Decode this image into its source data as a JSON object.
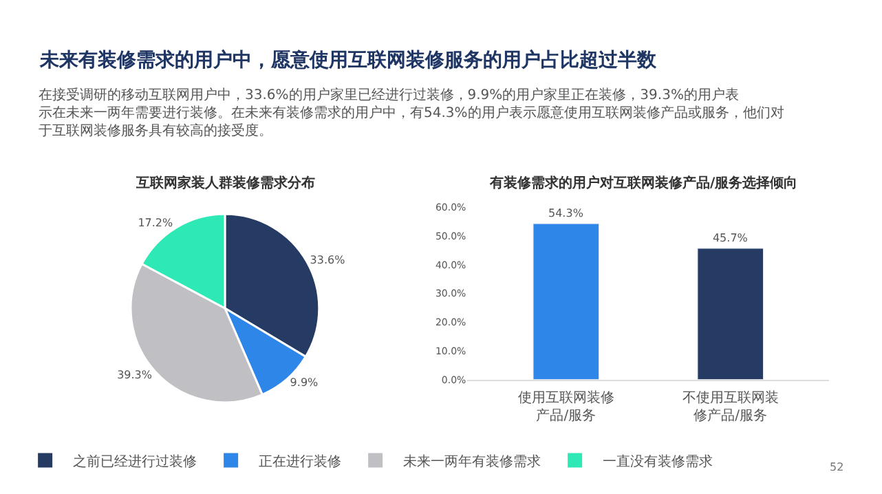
{
  "chart_data": [
    {
      "type": "other",
      "title": "未来有装修需求的用户中，愿意使用互联网装修服务的用户占比超过半数",
      "subtitle": "在接受调研的移动互联网用户中，33.6%的用户家里已经进行过装修，9.9%的用户家里正在装修，39.3%的用户表示在未来一两年需要进行装修。在未来有装修需求的用户中，$^{}$有54.3%的用户表示愿意使用互联网装修产品或服务，他们对于互联网装修服务具有较高的接受度。",
      "annotations": [
        "52"
      ]
    },
    {
      "type": "pie",
      "title": "互联网家装人群装修需求分布",
      "categories": [
        "之前已经进行过装修",
        "正在进行装修",
        "未来一两年有装修需求",
        "一直没有装修需求"
      ],
      "values": [
        33.6,
        9.9,
        39.3,
        17.2
      ],
      "colors": [
        "#253b63",
        "#2e86e8",
        "#c0c0c4",
        "#2ee8b6"
      ],
      "value_labels": [
        "33.6%",
        "9.9%",
        "39.3%",
        "17.2%"
      ],
      "legend": "bottom"
    },
    {
      "type": "bar",
      "title": "有装修需求的用户对互联网装修产品/服务选择倾向",
      "categories": [
        "使用互联网装修产品/服务",
        "不使用互联网装修产品/服务"
      ],
      "values": [
        54.3,
        45.7
      ],
      "colors": [
        "#2e86e8",
        "#253b63"
      ],
      "value_labels": [
        "54.3%",
        "45.7%"
      ],
      "ylim": [
        0,
        60
      ],
      "yticks": [
        {
          "value": 0,
          "label": "0.0%"
        },
        {
          "value": 10,
          "label": "10.0%"
        },
        {
          "value": 20,
          "label": "20.0%"
        },
        {
          "value": 30,
          "label": "30.0%"
        },
        {
          "value": 40,
          "label": "40.0%"
        },
        {
          "value": 50,
          "label": "50.0%"
        },
        {
          "value": 60,
          "label": "60.0%"
        }
      ],
      "grid": false
    }
  ]
}
